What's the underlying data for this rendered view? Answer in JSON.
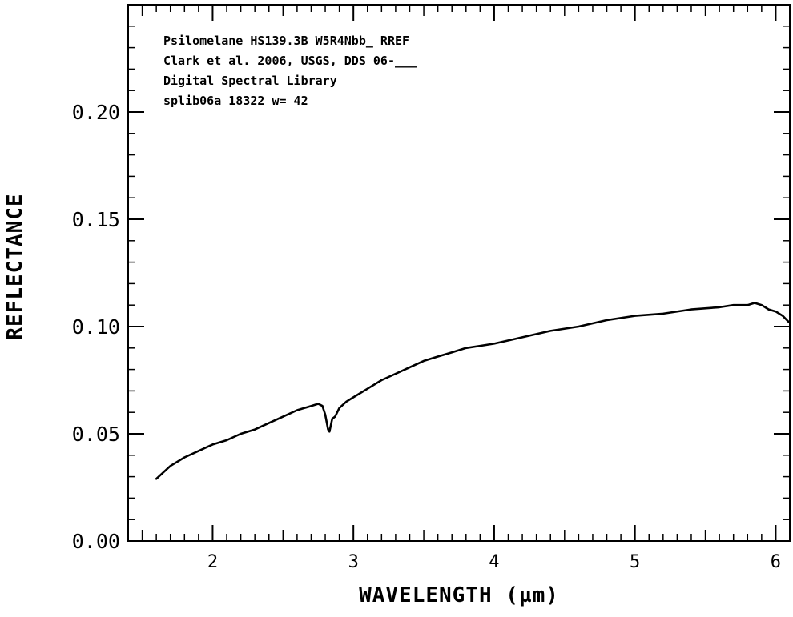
{
  "chart_data": {
    "type": "line",
    "xlabel": "WAVELENGTH (µm)",
    "ylabel": "REFLECTANCE",
    "xlim": [
      1.4,
      6.1
    ],
    "ylim": [
      0.0,
      0.25
    ],
    "xticks": [
      {
        "value": 2,
        "label": "2"
      },
      {
        "value": 3,
        "label": "3"
      },
      {
        "value": 4,
        "label": "4"
      },
      {
        "value": 5,
        "label": "5"
      },
      {
        "value": 6,
        "label": "6"
      }
    ],
    "yticks": [
      {
        "value": 0.0,
        "label": "0.00"
      },
      {
        "value": 0.05,
        "label": "0.05"
      },
      {
        "value": 0.1,
        "label": "0.10"
      },
      {
        "value": 0.15,
        "label": "0.15"
      },
      {
        "value": 0.2,
        "label": "0.20"
      }
    ],
    "annotations": [
      {
        "text": "Psilomelane HS139.3B       W5R4Nbb_ RREF"
      },
      {
        "text": "Clark et al. 2006, USGS, DDS 06-___"
      },
      {
        "text": "Digital Spectral Library"
      },
      {
        "text": "splib06a 18322 w= 42"
      }
    ],
    "grid": false,
    "series": [
      {
        "color": "#000000",
        "x": [
          1.6,
          1.7,
          1.8,
          1.9,
          2.0,
          2.1,
          2.2,
          2.3,
          2.4,
          2.5,
          2.6,
          2.7,
          2.75,
          2.78,
          2.8,
          2.82,
          2.83,
          2.85,
          2.87,
          2.9,
          2.95,
          3.0,
          3.1,
          3.2,
          3.3,
          3.4,
          3.5,
          3.6,
          3.7,
          3.8,
          3.9,
          4.0,
          4.2,
          4.4,
          4.6,
          4.8,
          5.0,
          5.2,
          5.4,
          5.6,
          5.7,
          5.8,
          5.85,
          5.9,
          5.95,
          6.0,
          6.05,
          6.1
        ],
        "y": [
          0.029,
          0.035,
          0.039,
          0.042,
          0.045,
          0.047,
          0.05,
          0.052,
          0.055,
          0.058,
          0.061,
          0.063,
          0.064,
          0.063,
          0.059,
          0.052,
          0.051,
          0.057,
          0.058,
          0.062,
          0.065,
          0.067,
          0.071,
          0.075,
          0.078,
          0.081,
          0.084,
          0.086,
          0.088,
          0.09,
          0.091,
          0.092,
          0.095,
          0.098,
          0.1,
          0.103,
          0.105,
          0.106,
          0.108,
          0.109,
          0.11,
          0.11,
          0.111,
          0.11,
          0.108,
          0.107,
          0.105,
          0.102
        ]
      }
    ]
  }
}
